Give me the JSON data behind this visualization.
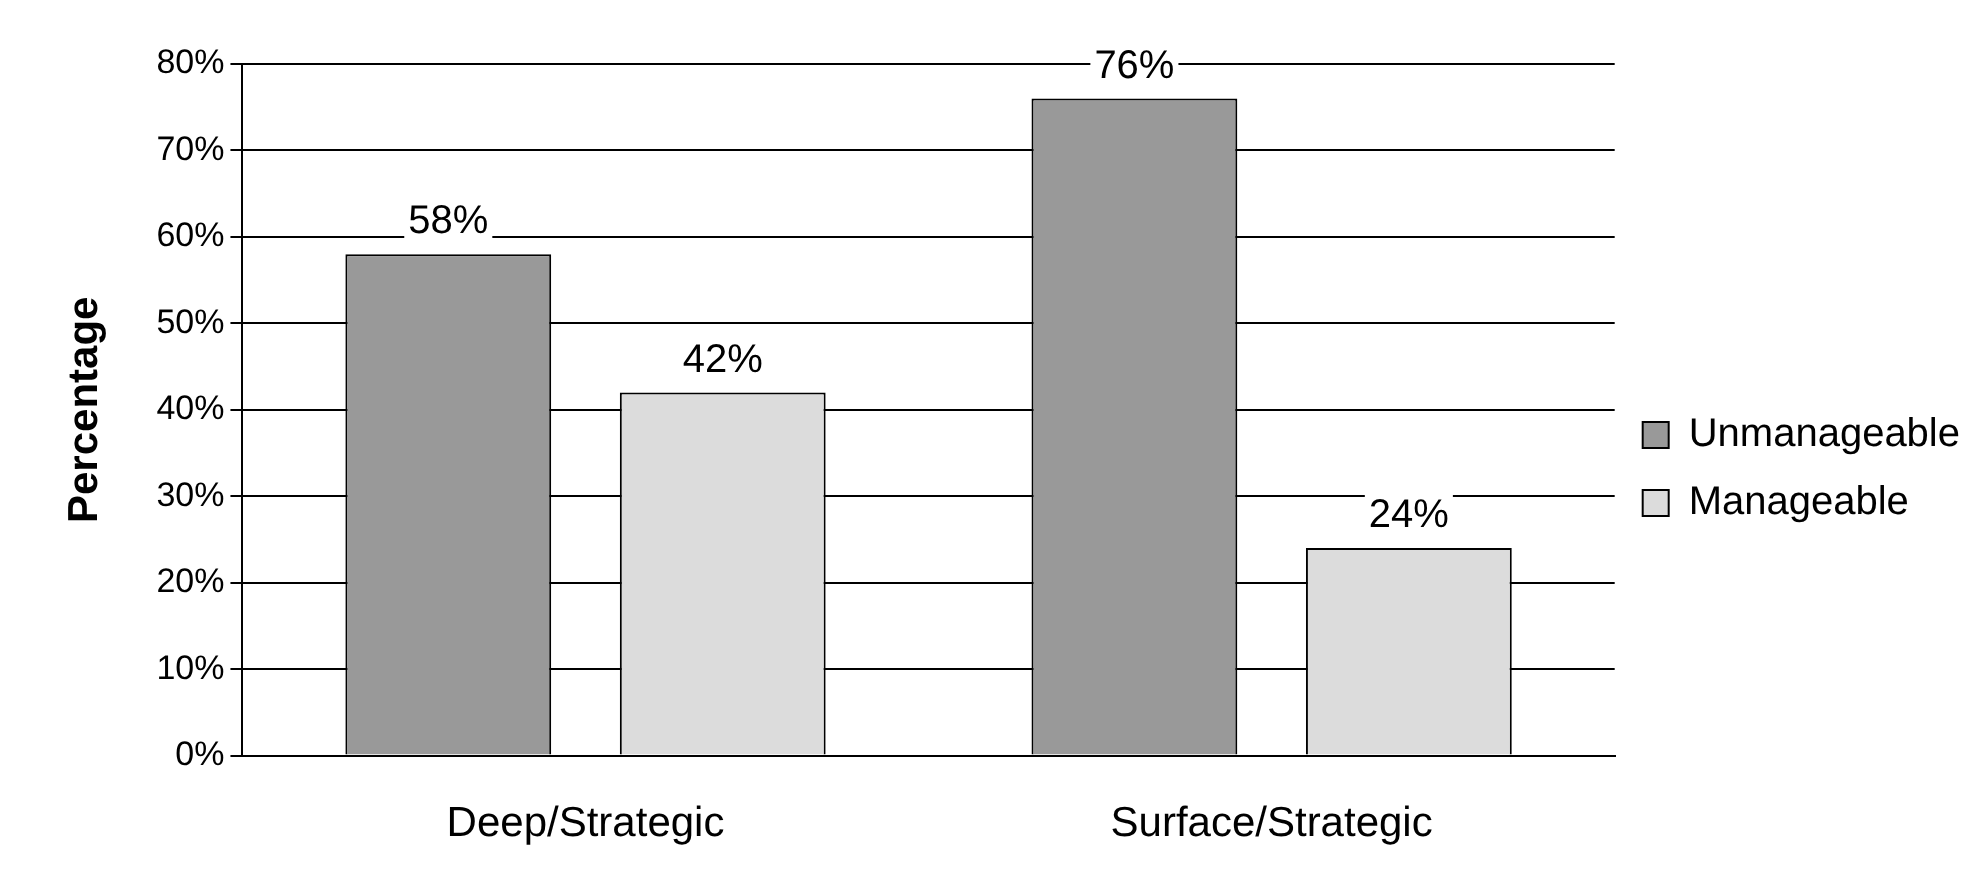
{
  "chart_data": {
    "type": "bar",
    "ylabel": "Percentage",
    "categories": [
      "Deep/Strategic",
      "Surface/Strategic"
    ],
    "series": [
      {
        "name": "Unmanageable",
        "color": "#999999",
        "values": [
          58,
          76
        ],
        "value_labels": [
          "58%",
          "76%"
        ]
      },
      {
        "name": "Manageable",
        "color": "#dcdcdc",
        "values": [
          42,
          24
        ],
        "value_labels": [
          "42%",
          "24%"
        ]
      }
    ],
    "ylim": [
      0,
      80
    ],
    "yticks": [
      {
        "value": 0,
        "label": "0%"
      },
      {
        "value": 10,
        "label": "10%"
      },
      {
        "value": 20,
        "label": "20%"
      },
      {
        "value": 30,
        "label": "30%"
      },
      {
        "value": 40,
        "label": "40%"
      },
      {
        "value": 50,
        "label": "50%"
      },
      {
        "value": 60,
        "label": "60%"
      },
      {
        "value": 70,
        "label": "70%"
      },
      {
        "value": 80,
        "label": "80%"
      }
    ],
    "grid": "y",
    "legend": "right"
  }
}
